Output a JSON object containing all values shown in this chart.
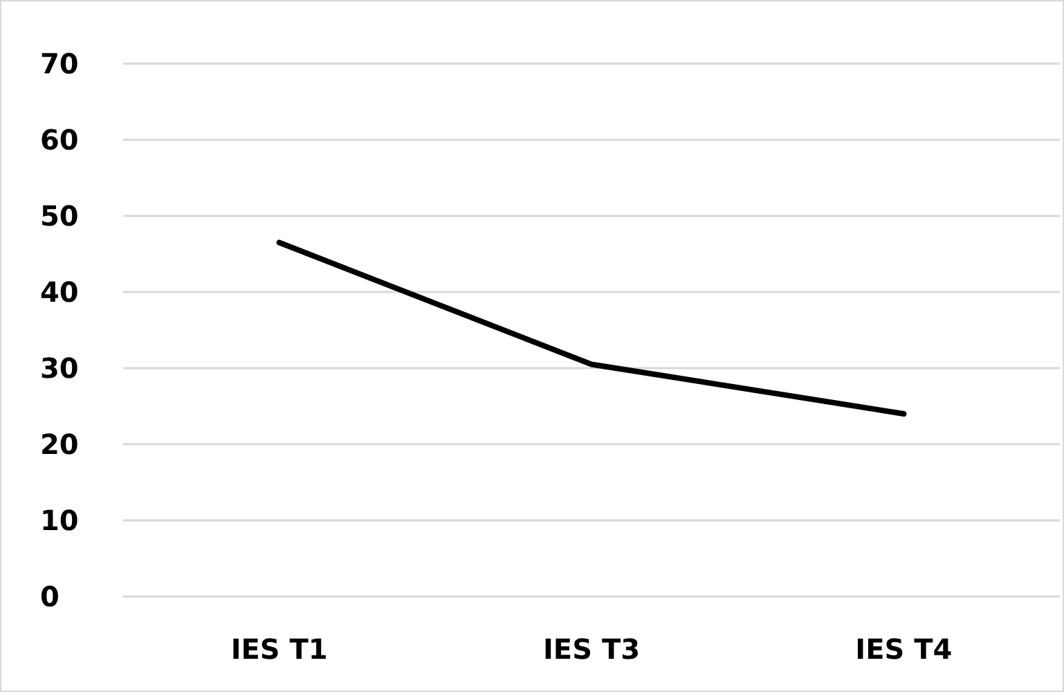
{
  "chart_data": {
    "type": "line",
    "categories": [
      "IES T1",
      "IES T3",
      "IES T4"
    ],
    "series": [
      {
        "color": "#000000",
        "values": [
          46.5,
          30.5,
          24
        ]
      }
    ],
    "ylim": [
      0,
      70
    ],
    "yticks": [
      0,
      10,
      20,
      30,
      40,
      50,
      60,
      70
    ],
    "grid": "y",
    "marker": "none"
  }
}
